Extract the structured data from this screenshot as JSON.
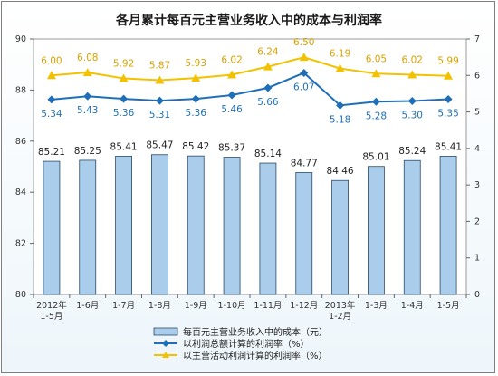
{
  "chart_data": {
    "type": "bar",
    "title": "各月累计每百元主营业务收入中的成本与利润率",
    "categories": [
      "2012年\n1-5月",
      "1-6月",
      "1-7月",
      "1-8月",
      "1-9月",
      "1-10月",
      "1-11月",
      "1-12月",
      "2013年\n1-2月",
      "1-3月",
      "1-4月",
      "1-5月"
    ],
    "ylim_left": [
      80,
      90
    ],
    "ylim_right": [
      0,
      7
    ],
    "left_ticks": [
      80,
      82,
      84,
      86,
      88,
      90
    ],
    "right_ticks": [
      0,
      1,
      2,
      3,
      4,
      5,
      6,
      7
    ],
    "legend_position": "bottom",
    "series": [
      {
        "name": "每百元主营业务收入中的成本（元）",
        "type": "bar",
        "axis": "left",
        "color": "#a9cdea",
        "values": [
          85.21,
          85.25,
          85.41,
          85.47,
          85.42,
          85.37,
          85.14,
          84.77,
          84.46,
          85.01,
          85.24,
          85.41
        ]
      },
      {
        "name": "以利润总额计算的利润率（%）",
        "type": "line",
        "axis": "right",
        "color": "#1f6fb8",
        "values": [
          5.34,
          5.43,
          5.36,
          5.31,
          5.36,
          5.46,
          5.66,
          6.07,
          5.18,
          5.28,
          5.3,
          5.35
        ]
      },
      {
        "name": "以主营活动利润计算的利润率（%）",
        "type": "line",
        "axis": "right",
        "color": "#f2c200",
        "values": [
          6.0,
          6.08,
          5.92,
          5.87,
          5.93,
          6.02,
          6.24,
          6.5,
          6.19,
          6.05,
          6.02,
          5.99
        ]
      }
    ]
  }
}
